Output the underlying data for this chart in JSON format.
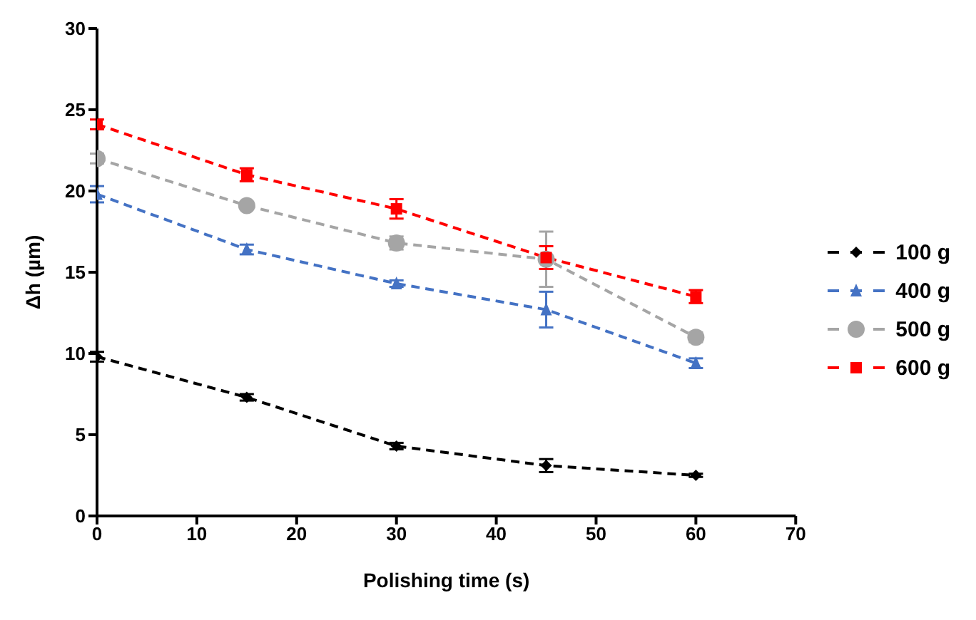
{
  "chart_data": {
    "type": "line",
    "xlabel": "Polishing time (s)",
    "ylabel": "Δh (µm)",
    "xlim": [
      0,
      70
    ],
    "xticks": [
      0,
      10,
      20,
      30,
      40,
      50,
      60,
      70
    ],
    "ylim": [
      0,
      30
    ],
    "yticks": [
      0,
      5,
      10,
      15,
      20,
      25,
      30
    ],
    "grid": false,
    "legend": "right",
    "line_style": "dashed",
    "x": [
      0,
      15,
      30,
      45,
      60
    ],
    "series": [
      {
        "name": "100 g",
        "color": "#000000",
        "marker": "diamond",
        "values": [
          9.8,
          7.3,
          4.3,
          3.1,
          2.5
        ],
        "errors": [
          0.3,
          0.2,
          0.2,
          0.4,
          0.1
        ]
      },
      {
        "name": "400 g",
        "color": "#4472c4",
        "marker": "triangle",
        "values": [
          19.8,
          16.4,
          14.3,
          12.7,
          9.4
        ],
        "errors": [
          0.5,
          0.3,
          0.2,
          1.1,
          0.3
        ]
      },
      {
        "name": "500 g",
        "color": "#a5a5a5",
        "marker": "circle",
        "values": [
          22.0,
          19.1,
          16.8,
          15.8,
          11.0
        ],
        "errors": [
          0.3,
          0.2,
          0.4,
          1.7,
          0.3
        ]
      },
      {
        "name": "600 g",
        "color": "#ff0000",
        "marker": "square",
        "values": [
          24.1,
          21.0,
          18.9,
          15.9,
          13.5
        ],
        "errors": [
          0.3,
          0.4,
          0.6,
          0.7,
          0.4
        ]
      }
    ]
  }
}
